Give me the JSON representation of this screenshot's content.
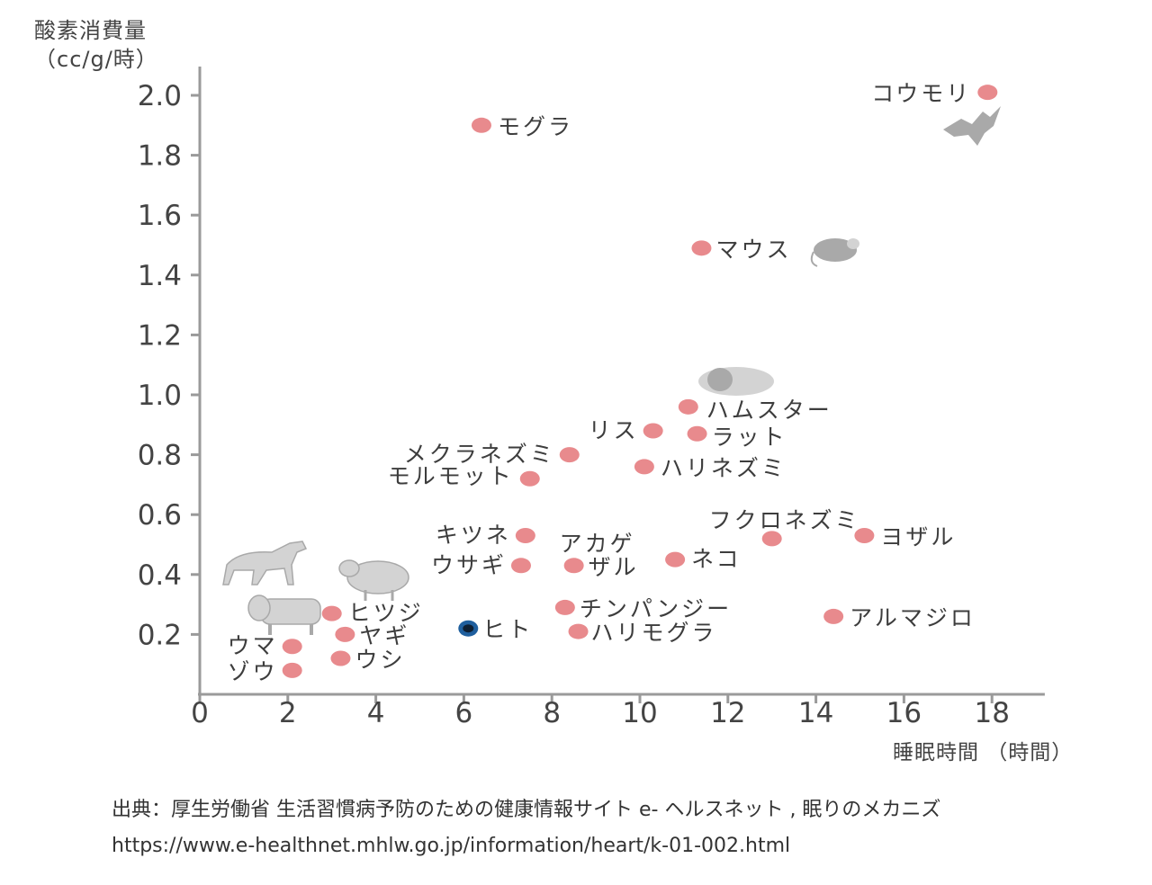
{
  "chart_data": {
    "type": "scatter",
    "ylabel": "酸素消費量",
    "yunit": "（cc/g/時）",
    "xlabel": "睡眠時間 （時間）",
    "xlim": [
      0,
      19
    ],
    "ylim": [
      0,
      2.1
    ],
    "xticks": [
      "0",
      "2",
      "4",
      "6",
      "8",
      "10",
      "12",
      "14",
      "16",
      "18"
    ],
    "yticks": [
      "0.2",
      "0.4",
      "0.6",
      "0.8",
      "1.0",
      "1.2",
      "1.4",
      "1.6",
      "1.8",
      "2.0"
    ],
    "marker_color": "#e88a8d",
    "highlight_color": "#1f5f9e",
    "points": [
      {
        "label": "コウモリ",
        "x": 17.9,
        "y": 2.01
      },
      {
        "label": "モグラ",
        "x": 6.4,
        "y": 1.9
      },
      {
        "label": "マウス",
        "x": 11.4,
        "y": 1.49
      },
      {
        "label": "ハムスター",
        "x": 11.1,
        "y": 0.96
      },
      {
        "label": "リス",
        "x": 10.3,
        "y": 0.88
      },
      {
        "label": "ラット",
        "x": 11.3,
        "y": 0.87
      },
      {
        "label": "メクラネズミ",
        "x": 8.4,
        "y": 0.8
      },
      {
        "label": "ハリネズミ",
        "x": 10.1,
        "y": 0.76
      },
      {
        "label": "モルモット",
        "x": 7.5,
        "y": 0.72
      },
      {
        "label": "フクロネズミ",
        "x": 13.0,
        "y": 0.52
      },
      {
        "label": "ヨザル",
        "x": 15.1,
        "y": 0.53
      },
      {
        "label": "キツネ",
        "x": 7.4,
        "y": 0.53
      },
      {
        "label": "アカゲザル",
        "x": 8.5,
        "y": 0.43
      },
      {
        "label": "ウサギ",
        "x": 7.3,
        "y": 0.43
      },
      {
        "label": "ネコ",
        "x": 10.8,
        "y": 0.45
      },
      {
        "label": "チンパンジー",
        "x": 8.3,
        "y": 0.29
      },
      {
        "label": "アルマジロ",
        "x": 14.4,
        "y": 0.26
      },
      {
        "label": "ヒツジ",
        "x": 3.0,
        "y": 0.27
      },
      {
        "label": "ヒト",
        "x": 6.1,
        "y": 0.22,
        "highlight": true
      },
      {
        "label": "ハリモグラ",
        "x": 8.6,
        "y": 0.21
      },
      {
        "label": "ヤギ",
        "x": 3.3,
        "y": 0.2
      },
      {
        "label": "ウマ",
        "x": 2.1,
        "y": 0.16
      },
      {
        "label": "ウシ",
        "x": 3.2,
        "y": 0.12
      },
      {
        "label": "ゾウ",
        "x": 2.1,
        "y": 0.08
      }
    ],
    "illustrations": [
      "bat",
      "mouse",
      "hamster",
      "horse",
      "sheep",
      "cow"
    ]
  },
  "source": {
    "line1": "出典：厚生労働省 生活習慣病予防のための健康情報サイト e- ヘルスネット , 眠りのメカニズ",
    "line2": "https://www.e-healthnet.mhlw.go.jp/information/heart/k-01-002.html"
  }
}
